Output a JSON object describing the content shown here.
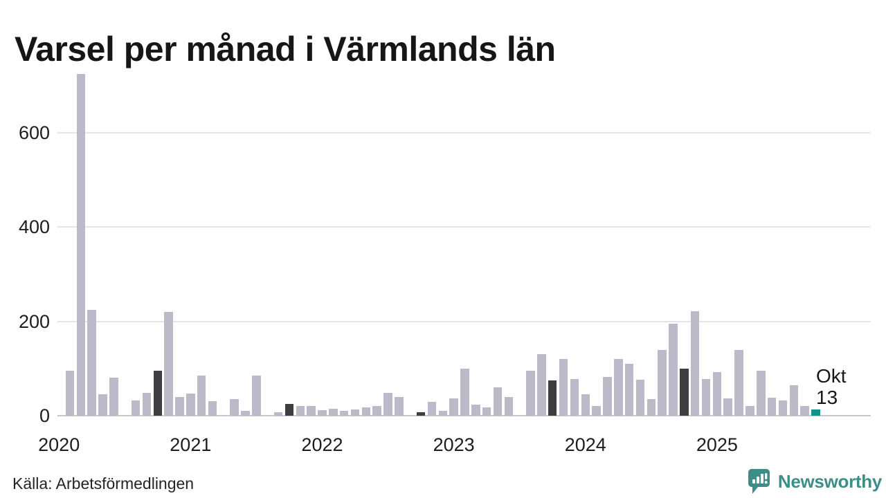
{
  "title": "Varsel per månad i Värmlands län",
  "source": "Källa: Arbetsförmedlingen",
  "annotation": {
    "line1": "Okt",
    "line2": "13"
  },
  "brand": {
    "name": "Newsworthy",
    "color": "#3c8e86"
  },
  "colors": {
    "bar": "#bcbac8",
    "october": "#3e3e41",
    "current": "#12948c",
    "grid": "#e4e4e7",
    "baseline": "#c7c7cc",
    "text": "#1d1d1d"
  },
  "chart_data": {
    "type": "bar",
    "title": "Varsel per månad i Värmlands län",
    "ylabel": "",
    "xlabel": "",
    "ylim": [
      0,
      730
    ],
    "grid": "horizontal",
    "yticks": [
      {
        "label": "0",
        "value": 0
      },
      {
        "label": "200",
        "value": 200
      },
      {
        "label": "400",
        "value": 400
      },
      {
        "label": "600",
        "value": 600
      }
    ],
    "xticks": [
      {
        "label": "2020",
        "month_index": 0
      },
      {
        "label": "2021",
        "month_index": 12
      },
      {
        "label": "2022",
        "month_index": 24
      },
      {
        "label": "2023",
        "month_index": 36
      },
      {
        "label": "2024",
        "month_index": 48
      },
      {
        "label": "2025",
        "month_index": 60
      }
    ],
    "months": [
      {
        "label": "2020-01",
        "value": 0,
        "style": "normal"
      },
      {
        "label": "2020-02",
        "value": 95,
        "style": "normal"
      },
      {
        "label": "2020-03",
        "value": 725,
        "style": "normal"
      },
      {
        "label": "2020-04",
        "value": 225,
        "style": "normal"
      },
      {
        "label": "2020-05",
        "value": 45,
        "style": "normal"
      },
      {
        "label": "2020-06",
        "value": 80,
        "style": "normal"
      },
      {
        "label": "2020-07",
        "value": 0,
        "style": "normal"
      },
      {
        "label": "2020-08",
        "value": 33,
        "style": "normal"
      },
      {
        "label": "2020-09",
        "value": 48,
        "style": "normal"
      },
      {
        "label": "2020-10",
        "value": 95,
        "style": "october"
      },
      {
        "label": "2020-11",
        "value": 220,
        "style": "normal"
      },
      {
        "label": "2020-12",
        "value": 40,
        "style": "normal"
      },
      {
        "label": "2021-01",
        "value": 47,
        "style": "normal"
      },
      {
        "label": "2021-02",
        "value": 85,
        "style": "normal"
      },
      {
        "label": "2021-03",
        "value": 31,
        "style": "normal"
      },
      {
        "label": "2021-04",
        "value": 0,
        "style": "normal"
      },
      {
        "label": "2021-05",
        "value": 35,
        "style": "normal"
      },
      {
        "label": "2021-06",
        "value": 10,
        "style": "normal"
      },
      {
        "label": "2021-07",
        "value": 85,
        "style": "normal"
      },
      {
        "label": "2021-08",
        "value": 0,
        "style": "normal"
      },
      {
        "label": "2021-09",
        "value": 7,
        "style": "normal"
      },
      {
        "label": "2021-10",
        "value": 25,
        "style": "october"
      },
      {
        "label": "2021-11",
        "value": 20,
        "style": "normal"
      },
      {
        "label": "2021-12",
        "value": 20,
        "style": "normal"
      },
      {
        "label": "2022-01",
        "value": 12,
        "style": "normal"
      },
      {
        "label": "2022-02",
        "value": 15,
        "style": "normal"
      },
      {
        "label": "2022-03",
        "value": 11,
        "style": "normal"
      },
      {
        "label": "2022-04",
        "value": 14,
        "style": "normal"
      },
      {
        "label": "2022-05",
        "value": 18,
        "style": "normal"
      },
      {
        "label": "2022-06",
        "value": 21,
        "style": "normal"
      },
      {
        "label": "2022-07",
        "value": 48,
        "style": "normal"
      },
      {
        "label": "2022-08",
        "value": 40,
        "style": "normal"
      },
      {
        "label": "2022-09",
        "value": 0,
        "style": "normal"
      },
      {
        "label": "2022-10",
        "value": 7,
        "style": "october"
      },
      {
        "label": "2022-11",
        "value": 30,
        "style": "normal"
      },
      {
        "label": "2022-12",
        "value": 10,
        "style": "normal"
      },
      {
        "label": "2023-01",
        "value": 36,
        "style": "normal"
      },
      {
        "label": "2023-02",
        "value": 100,
        "style": "normal"
      },
      {
        "label": "2023-03",
        "value": 24,
        "style": "normal"
      },
      {
        "label": "2023-04",
        "value": 17,
        "style": "normal"
      },
      {
        "label": "2023-05",
        "value": 60,
        "style": "normal"
      },
      {
        "label": "2023-06",
        "value": 40,
        "style": "normal"
      },
      {
        "label": "2023-07",
        "value": 0,
        "style": "normal"
      },
      {
        "label": "2023-08",
        "value": 95,
        "style": "normal"
      },
      {
        "label": "2023-09",
        "value": 130,
        "style": "normal"
      },
      {
        "label": "2023-10",
        "value": 75,
        "style": "october"
      },
      {
        "label": "2023-11",
        "value": 120,
        "style": "normal"
      },
      {
        "label": "2023-12",
        "value": 78,
        "style": "normal"
      },
      {
        "label": "2024-01",
        "value": 45,
        "style": "normal"
      },
      {
        "label": "2024-02",
        "value": 21,
        "style": "normal"
      },
      {
        "label": "2024-03",
        "value": 82,
        "style": "normal"
      },
      {
        "label": "2024-04",
        "value": 120,
        "style": "normal"
      },
      {
        "label": "2024-05",
        "value": 110,
        "style": "normal"
      },
      {
        "label": "2024-06",
        "value": 77,
        "style": "normal"
      },
      {
        "label": "2024-07",
        "value": 35,
        "style": "normal"
      },
      {
        "label": "2024-08",
        "value": 140,
        "style": "normal"
      },
      {
        "label": "2024-09",
        "value": 195,
        "style": "normal"
      },
      {
        "label": "2024-10",
        "value": 100,
        "style": "october"
      },
      {
        "label": "2024-11",
        "value": 222,
        "style": "normal"
      },
      {
        "label": "2024-12",
        "value": 78,
        "style": "normal"
      },
      {
        "label": "2025-01",
        "value": 93,
        "style": "normal"
      },
      {
        "label": "2025-02",
        "value": 36,
        "style": "normal"
      },
      {
        "label": "2025-03",
        "value": 140,
        "style": "normal"
      },
      {
        "label": "2025-04",
        "value": 20,
        "style": "normal"
      },
      {
        "label": "2025-05",
        "value": 95,
        "style": "normal"
      },
      {
        "label": "2025-06",
        "value": 38,
        "style": "normal"
      },
      {
        "label": "2025-07",
        "value": 33,
        "style": "normal"
      },
      {
        "label": "2025-08",
        "value": 65,
        "style": "normal"
      },
      {
        "label": "2025-09",
        "value": 20,
        "style": "normal"
      },
      {
        "label": "2025-10",
        "value": 13,
        "style": "current"
      }
    ]
  }
}
